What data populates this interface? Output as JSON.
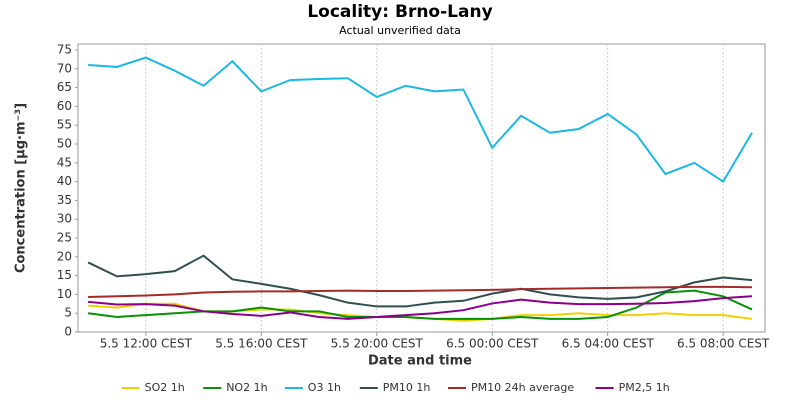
{
  "chart_data": {
    "type": "line",
    "title": "Locality: Brno-Lany",
    "subtitle": "Actual unverified data",
    "x_label": "Date and time",
    "y_label": "Concentration [µg·m⁻³]",
    "x": [
      10,
      11,
      12,
      13,
      14,
      15,
      16,
      17,
      18,
      19,
      20,
      21,
      22,
      23,
      24,
      25,
      26,
      27,
      28,
      29,
      30,
      31,
      32,
      33
    ],
    "xlim": [
      9.65,
      33.45
    ],
    "xticks": [
      {
        "value": 12,
        "label": "5.5 12:00 CEST"
      },
      {
        "value": 16,
        "label": "5.5 16:00 CEST"
      },
      {
        "value": 20,
        "label": "5.5 20:00 CEST"
      },
      {
        "value": 24,
        "label": "6.5 00:00 CEST"
      },
      {
        "value": 28,
        "label": "6.5 04:00 CEST"
      },
      {
        "value": 32,
        "label": "6.5 08:00 CEST"
      }
    ],
    "ylim": [
      0,
      76.6
    ],
    "yticks": [
      0,
      5,
      10,
      15,
      20,
      25,
      30,
      35,
      40,
      45,
      50,
      55,
      60,
      65,
      70,
      75
    ],
    "grid": "x",
    "legend": "bottom",
    "series": [
      {
        "name": "SO2 1h",
        "color": "#f2d100",
        "values": [
          7,
          6.5,
          7.5,
          7.5,
          5.5,
          5.5,
          6,
          6,
          5,
          4.5,
          4,
          4,
          3.5,
          3,
          3.5,
          4.5,
          4.5,
          5,
          4.5,
          4.5,
          5,
          4.5,
          4.5,
          3.5
        ]
      },
      {
        "name": "NO2 1h",
        "color": "#079107",
        "values": [
          5,
          4,
          4.5,
          5,
          5.5,
          5.5,
          6.5,
          5.5,
          5.5,
          4,
          4,
          4,
          3.5,
          3.5,
          3.5,
          4,
          3.5,
          3.5,
          4,
          6.5,
          10.5,
          11,
          9.5,
          6
        ]
      },
      {
        "name": "O3 1h",
        "color": "#1ab8e8",
        "values": [
          71,
          70.5,
          73,
          69.5,
          65.5,
          72,
          64,
          67,
          67.3,
          67.5,
          62.5,
          65.5,
          64,
          64.5,
          49,
          57.5,
          53,
          54,
          58,
          52.5,
          42,
          45,
          40,
          53
        ]
      },
      {
        "name": "PM10 1h",
        "color": "#2f4f4f",
        "values": [
          18.5,
          14.8,
          15.4,
          16.2,
          20.3,
          14,
          12.8,
          11.5,
          9.8,
          7.8,
          6.8,
          6.8,
          7.8,
          8.3,
          10.2,
          11.5,
          10,
          9.2,
          8.8,
          9.2,
          10.8,
          13.2,
          14.5,
          13.8
        ]
      },
      {
        "name": "PM10 24h average",
        "color": "#a52a2a",
        "values": [
          9.3,
          9.5,
          9.7,
          10,
          10.5,
          10.7,
          10.8,
          10.8,
          10.9,
          11,
          10.9,
          10.9,
          11,
          11.1,
          11.2,
          11.4,
          11.5,
          11.6,
          11.7,
          11.8,
          11.9,
          12,
          12,
          11.9
        ]
      },
      {
        "name": "PM2,5 1h",
        "color": "#8b008b",
        "values": [
          8,
          7.3,
          7.4,
          7,
          5.5,
          4.8,
          4.3,
          5.2,
          4,
          3.5,
          4,
          4.5,
          5,
          5.8,
          7.6,
          8.6,
          7.8,
          7.4,
          7.4,
          7.5,
          7.7,
          8.2,
          9,
          9.5
        ]
      }
    ]
  }
}
